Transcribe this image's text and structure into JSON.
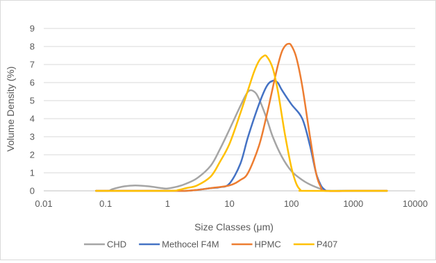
{
  "chart_data": {
    "type": "line",
    "title": "",
    "xlabel": "Size Classes (μm)",
    "ylabel": "Volume Density (%)",
    "x_scale": "log",
    "xlim": [
      0.01,
      10000
    ],
    "ylim": [
      0,
      9
    ],
    "x_ticks": [
      "0.01",
      "0.1",
      "1",
      "10",
      "100",
      "1000",
      "10000"
    ],
    "y_ticks": [
      "0",
      "1",
      "2",
      "3",
      "4",
      "5",
      "6",
      "7",
      "8",
      "9"
    ],
    "grid": "horizontal",
    "legend_position": "bottom",
    "series": [
      {
        "name": "CHD",
        "color": "#a5a5a5",
        "points": [
          [
            0.07,
            0
          ],
          [
            0.11,
            0
          ],
          [
            0.13,
            0.1
          ],
          [
            0.2,
            0.25
          ],
          [
            0.3,
            0.3
          ],
          [
            0.5,
            0.25
          ],
          [
            0.8,
            0.15
          ],
          [
            1,
            0.13
          ],
          [
            1.5,
            0.25
          ],
          [
            2,
            0.4
          ],
          [
            3,
            0.7
          ],
          [
            5,
            1.4
          ],
          [
            7,
            2.3
          ],
          [
            10,
            3.4
          ],
          [
            15,
            4.7
          ],
          [
            20,
            5.5
          ],
          [
            25,
            5.5
          ],
          [
            30,
            5.1
          ],
          [
            40,
            4.0
          ],
          [
            50,
            3.0
          ],
          [
            70,
            1.9
          ],
          [
            100,
            1.1
          ],
          [
            150,
            0.6
          ],
          [
            200,
            0.35
          ],
          [
            300,
            0.1
          ],
          [
            380,
            0
          ],
          [
            1000,
            0
          ],
          [
            3500,
            0
          ]
        ]
      },
      {
        "name": "Methocel F4M",
        "color": "#4472c4",
        "points": [
          [
            0.07,
            0
          ],
          [
            1,
            0
          ],
          [
            2,
            0
          ],
          [
            3,
            0.05
          ],
          [
            5,
            0.15
          ],
          [
            7,
            0.2
          ],
          [
            10,
            0.4
          ],
          [
            15,
            1.5
          ],
          [
            20,
            3.0
          ],
          [
            30,
            4.8
          ],
          [
            40,
            5.8
          ],
          [
            50,
            6.1
          ],
          [
            60,
            6.0
          ],
          [
            70,
            5.6
          ],
          [
            100,
            4.8
          ],
          [
            150,
            4.0
          ],
          [
            200,
            2.5
          ],
          [
            250,
            1.0
          ],
          [
            300,
            0.3
          ],
          [
            350,
            0.05
          ],
          [
            400,
            0
          ],
          [
            1000,
            0
          ],
          [
            3500,
            0
          ]
        ]
      },
      {
        "name": "HPMC",
        "color": "#ed7d31",
        "points": [
          [
            0.07,
            0
          ],
          [
            1,
            0
          ],
          [
            2,
            0
          ],
          [
            3,
            0.05
          ],
          [
            5,
            0.15
          ],
          [
            10,
            0.3
          ],
          [
            15,
            0.6
          ],
          [
            20,
            1.0
          ],
          [
            30,
            2.5
          ],
          [
            40,
            4.2
          ],
          [
            50,
            5.7
          ],
          [
            60,
            6.9
          ],
          [
            70,
            7.7
          ],
          [
            80,
            8.05
          ],
          [
            90,
            8.15
          ],
          [
            100,
            8.05
          ],
          [
            120,
            7.4
          ],
          [
            150,
            5.8
          ],
          [
            200,
            3.0
          ],
          [
            250,
            1.0
          ],
          [
            300,
            0.2
          ],
          [
            350,
            0
          ],
          [
            1000,
            0
          ],
          [
            3500,
            0
          ]
        ]
      },
      {
        "name": "P407",
        "color": "#ffc000",
        "points": [
          [
            0.07,
            0
          ],
          [
            1,
            0
          ],
          [
            1.5,
            0.05
          ],
          [
            2,
            0.15
          ],
          [
            3,
            0.3
          ],
          [
            5,
            0.8
          ],
          [
            7,
            1.6
          ],
          [
            10,
            2.6
          ],
          [
            15,
            4.3
          ],
          [
            20,
            5.6
          ],
          [
            25,
            6.6
          ],
          [
            30,
            7.2
          ],
          [
            35,
            7.45
          ],
          [
            40,
            7.45
          ],
          [
            50,
            6.8
          ],
          [
            60,
            5.6
          ],
          [
            70,
            4.2
          ],
          [
            80,
            3.0
          ],
          [
            100,
            1.3
          ],
          [
            120,
            0.4
          ],
          [
            140,
            0.05
          ],
          [
            160,
            0
          ],
          [
            1000,
            0
          ],
          [
            3500,
            0
          ]
        ]
      }
    ]
  }
}
